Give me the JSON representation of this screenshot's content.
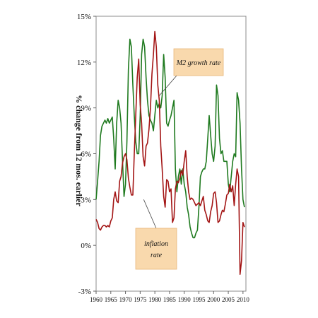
{
  "chart_data": {
    "type": "line",
    "title": "",
    "xlabel": "",
    "ylabel": "% change from 12 mos. earlier",
    "xlim": [
      1960,
      2011
    ],
    "ylim": [
      -3,
      15
    ],
    "y_ticks": [
      "-3%",
      "0%",
      "3%",
      "6%",
      "9%",
      "12%",
      "15%"
    ],
    "y_tick_values": [
      -3,
      0,
      3,
      6,
      9,
      12,
      15
    ],
    "x_ticks": [
      "1960",
      "1965",
      "1970",
      "1975",
      "1980",
      "1985",
      "1990",
      "1995",
      "2000",
      "2005",
      "2010"
    ],
    "x_tick_values": [
      1960,
      1965,
      1970,
      1975,
      1980,
      1985,
      1990,
      1995,
      2000,
      2005,
      2010
    ],
    "grid": false,
    "legend": "none",
    "series": [
      {
        "name": "M2 growth rate",
        "color": "#1f7a1f",
        "x": [
          1960,
          1960.5,
          1961,
          1961.5,
          1962,
          1962.5,
          1963,
          1963.5,
          1964,
          1964.5,
          1965,
          1965.5,
          1966,
          1966.5,
          1967,
          1967.5,
          1968,
          1968.5,
          1969,
          1969.5,
          1970,
          1970.5,
          1971,
          1971.5,
          1972,
          1972.5,
          1973,
          1973.5,
          1974,
          1974.5,
          1975,
          1975.5,
          1976,
          1976.5,
          1977,
          1977.5,
          1978,
          1978.5,
          1979,
          1979.5,
          1980,
          1980.5,
          1981,
          1981.5,
          1982,
          1982.5,
          1983,
          1983.5,
          1984,
          1984.5,
          1985,
          1985.5,
          1986,
          1986.5,
          1987,
          1987.5,
          1988,
          1988.5,
          1989,
          1989.5,
          1990,
          1990.5,
          1991,
          1991.5,
          1992,
          1992.5,
          1993,
          1993.5,
          1994,
          1994.5,
          1995,
          1995.5,
          1996,
          1996.5,
          1997,
          1997.5,
          1998,
          1998.5,
          1999,
          1999.5,
          2000,
          2000.5,
          2001,
          2001.5,
          2002,
          2002.5,
          2003,
          2003.5,
          2004,
          2004.5,
          2005,
          2005.5,
          2006,
          2006.5,
          2007,
          2007.5,
          2008,
          2008.5,
          2009,
          2009.5,
          2010,
          2010.5
        ],
        "values": [
          3.0,
          4.2,
          5.5,
          7.2,
          7.8,
          8.0,
          8.2,
          8.0,
          8.3,
          8.0,
          8.2,
          8.4,
          7.0,
          5.0,
          8.0,
          9.5,
          9.0,
          8.0,
          5.5,
          3.2,
          4.0,
          6.8,
          11.5,
          13.5,
          13.0,
          10.5,
          8.5,
          6.8,
          6.0,
          6.0,
          8.5,
          12.5,
          13.5,
          13.0,
          11.0,
          9.5,
          8.5,
          8.2,
          8.0,
          7.5,
          8.5,
          9.5,
          9.0,
          9.3,
          9.0,
          9.8,
          12.5,
          11.0,
          8.0,
          7.8,
          8.2,
          8.5,
          9.0,
          9.5,
          5.0,
          3.5,
          4.5,
          5.0,
          4.0,
          5.0,
          4.0,
          3.5,
          2.5,
          2.0,
          1.2,
          0.8,
          0.5,
          0.5,
          0.8,
          1.0,
          2.5,
          4.5,
          4.8,
          5.0,
          5.0,
          5.5,
          7.0,
          8.5,
          7.2,
          6.0,
          5.5,
          6.5,
          10.5,
          9.8,
          7.0,
          6.0,
          6.2,
          5.5,
          5.5,
          5.5,
          4.0,
          3.5,
          4.5,
          5.5,
          6.0,
          5.8,
          10.0,
          9.5,
          8.0,
          5.0,
          3.0,
          2.5
        ]
      },
      {
        "name": "inflation rate",
        "color": "#a31515",
        "x": [
          1960,
          1960.5,
          1961,
          1961.5,
          1962,
          1962.5,
          1963,
          1963.5,
          1964,
          1964.5,
          1965,
          1965.5,
          1966,
          1966.5,
          1967,
          1967.5,
          1968,
          1968.5,
          1969,
          1969.5,
          1970,
          1970.5,
          1971,
          1971.5,
          1972,
          1972.5,
          1973,
          1973.5,
          1974,
          1974.5,
          1975,
          1975.5,
          1976,
          1976.5,
          1977,
          1977.5,
          1978,
          1978.5,
          1979,
          1979.5,
          1980,
          1980.5,
          1981,
          1981.5,
          1982,
          1982.5,
          1983,
          1983.5,
          1984,
          1984.5,
          1985,
          1985.5,
          1986,
          1986.5,
          1987,
          1987.5,
          1988,
          1988.5,
          1989,
          1989.5,
          1990,
          1990.5,
          1991,
          1991.5,
          1992,
          1992.5,
          1993,
          1993.5,
          1994,
          1994.5,
          1995,
          1995.5,
          1996,
          1996.5,
          1997,
          1997.5,
          1998,
          1998.5,
          1999,
          1999.5,
          2000,
          2000.5,
          2001,
          2001.5,
          2002,
          2002.5,
          2003,
          2003.5,
          2004,
          2004.5,
          2005,
          2005.5,
          2006,
          2006.5,
          2007,
          2007.5,
          2008,
          2008.5,
          2009,
          2009.5,
          2010,
          2010.5
        ],
        "values": [
          1.7,
          1.5,
          1.1,
          1.0,
          1.2,
          1.3,
          1.3,
          1.2,
          1.3,
          1.2,
          1.6,
          1.8,
          3.0,
          3.5,
          2.9,
          2.8,
          4.2,
          4.5,
          5.4,
          5.8,
          6.0,
          5.6,
          4.4,
          3.8,
          3.3,
          3.3,
          6.0,
          8.5,
          11.0,
          12.2,
          9.2,
          8.0,
          5.8,
          5.2,
          6.5,
          6.7,
          7.6,
          9.0,
          11.2,
          12.5,
          14.0,
          13.0,
          10.5,
          9.5,
          6.5,
          5.0,
          3.2,
          2.5,
          4.3,
          4.2,
          3.5,
          3.7,
          1.5,
          1.8,
          3.7,
          4.2,
          4.1,
          4.4,
          4.9,
          4.6,
          5.5,
          6.2,
          4.5,
          3.5,
          3.0,
          3.1,
          3.0,
          2.8,
          2.6,
          2.7,
          2.8,
          2.6,
          2.9,
          3.2,
          2.3,
          2.0,
          1.6,
          1.5,
          2.2,
          2.6,
          3.4,
          3.5,
          2.8,
          1.5,
          1.6,
          2.0,
          2.3,
          2.2,
          2.7,
          3.3,
          3.4,
          4.0,
          3.5,
          3.9,
          2.6,
          4.0,
          5.0,
          4.5,
          -1.9,
          -1.0,
          1.5,
          1.2
        ]
      }
    ],
    "annotations": [
      {
        "text": "M2 growth rate",
        "points_to_x": 1981.5,
        "points_to_y": 9.8
      },
      {
        "text": "inflation rate",
        "points_to_x": 1976.2,
        "points_to_y": 3.0
      }
    ]
  }
}
